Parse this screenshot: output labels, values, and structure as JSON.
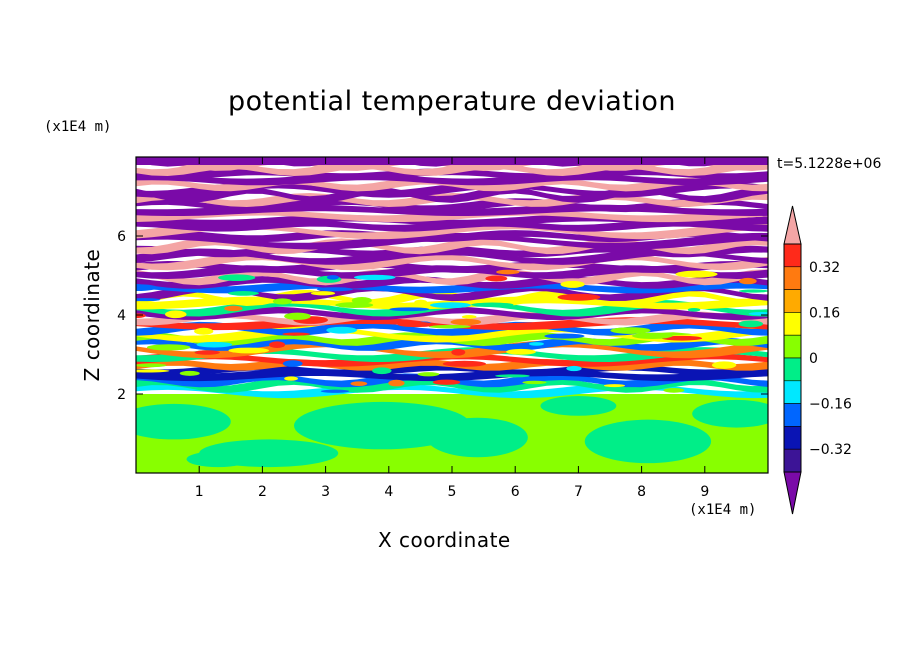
{
  "chart_data": {
    "type": "heatmap",
    "title": "potential temperature deviation",
    "xlabel": "X coordinate",
    "ylabel": "Z coordinate",
    "x_unit": "(x1E4 m)",
    "y_unit": "(x1E4 m)",
    "annotation": "t=5.1228e+06",
    "xlim": [
      0,
      10
    ],
    "ylim": [
      0,
      8
    ],
    "x_ticks": [
      1,
      2,
      3,
      4,
      5,
      6,
      7,
      8,
      9
    ],
    "y_ticks": [
      2,
      4,
      6
    ],
    "colorbar": {
      "levels": [
        -0.4,
        -0.32,
        -0.24,
        -0.16,
        -0.08,
        0,
        0.08,
        0.16,
        0.24,
        0.32,
        0.4
      ],
      "labels": [
        "0.32",
        "0.16",
        "0",
        "−0.16",
        "−0.32"
      ],
      "label_values": [
        0.32,
        0.16,
        0,
        -0.16,
        -0.32
      ],
      "colors_top_to_bottom": [
        "#f4a5a5",
        "#ff2a1a",
        "#ff7a10",
        "#ffaa00",
        "#ffff00",
        "#88ff00",
        "#00ee88",
        "#00e8ff",
        "#0066ff",
        "#0a14b4",
        "#3c1496",
        "#7a0aa8"
      ],
      "extend": "both"
    },
    "boundary_layer_top": 2.0,
    "lower_region_colors": [
      "#88ff00",
      "#00ee88"
    ],
    "upper_region_colors": [
      "#f4a5a5",
      "#7a0aa8"
    ]
  }
}
